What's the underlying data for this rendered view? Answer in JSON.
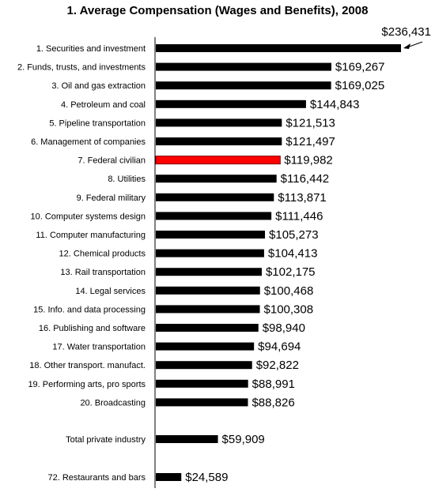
{
  "chart_data": {
    "type": "bar",
    "orientation": "horizontal",
    "title": "1. Average Compensation (Wages and Benefits), 2008",
    "categories": [
      "1. Securities and investment",
      "2. Funds, trusts, and investments",
      "3. Oil and gas extraction",
      "4. Petroleum and coal",
      "5. Pipeline transportation",
      "6. Management of companies",
      "7. Federal civilian",
      "8. Utilities",
      "9. Federal military",
      "10. Computer systems design",
      "11. Computer manufacturing",
      "12. Chemical products",
      "13. Rail transportation",
      "14. Legal services",
      "15. Info. and data processing",
      "16. Publishing and software",
      "17. Water transportation",
      "18. Other transport. manufact.",
      "19. Performing arts, pro sports",
      "20. Broadcasting",
      "Total private industry",
      "72. Restaurants and bars"
    ],
    "values": [
      236431,
      169267,
      169025,
      144843,
      121513,
      121497,
      119982,
      116442,
      113871,
      111446,
      105273,
      104413,
      102175,
      100468,
      100308,
      98940,
      94694,
      92822,
      88991,
      88826,
      59909,
      24589
    ],
    "value_labels": [
      "$236,431",
      "$169,267",
      "$169,025",
      "$144,843",
      "$121,513",
      "$121,497",
      "$119,982",
      "$116,442",
      "$113,871",
      "$111,446",
      "$105,273",
      "$104,413",
      "$102,175",
      "$100,468",
      "$100,308",
      "$98,940",
      "$94,694",
      "$92,822",
      "$88,991",
      "$88,826",
      "$59,909",
      "$24,589"
    ],
    "highlight_index": 6,
    "colors": {
      "bar": "#000000",
      "highlight": "#ff0000",
      "highlight_border": "#800000"
    },
    "annotation": {
      "type": "arrow",
      "points_to_index": 0
    }
  }
}
